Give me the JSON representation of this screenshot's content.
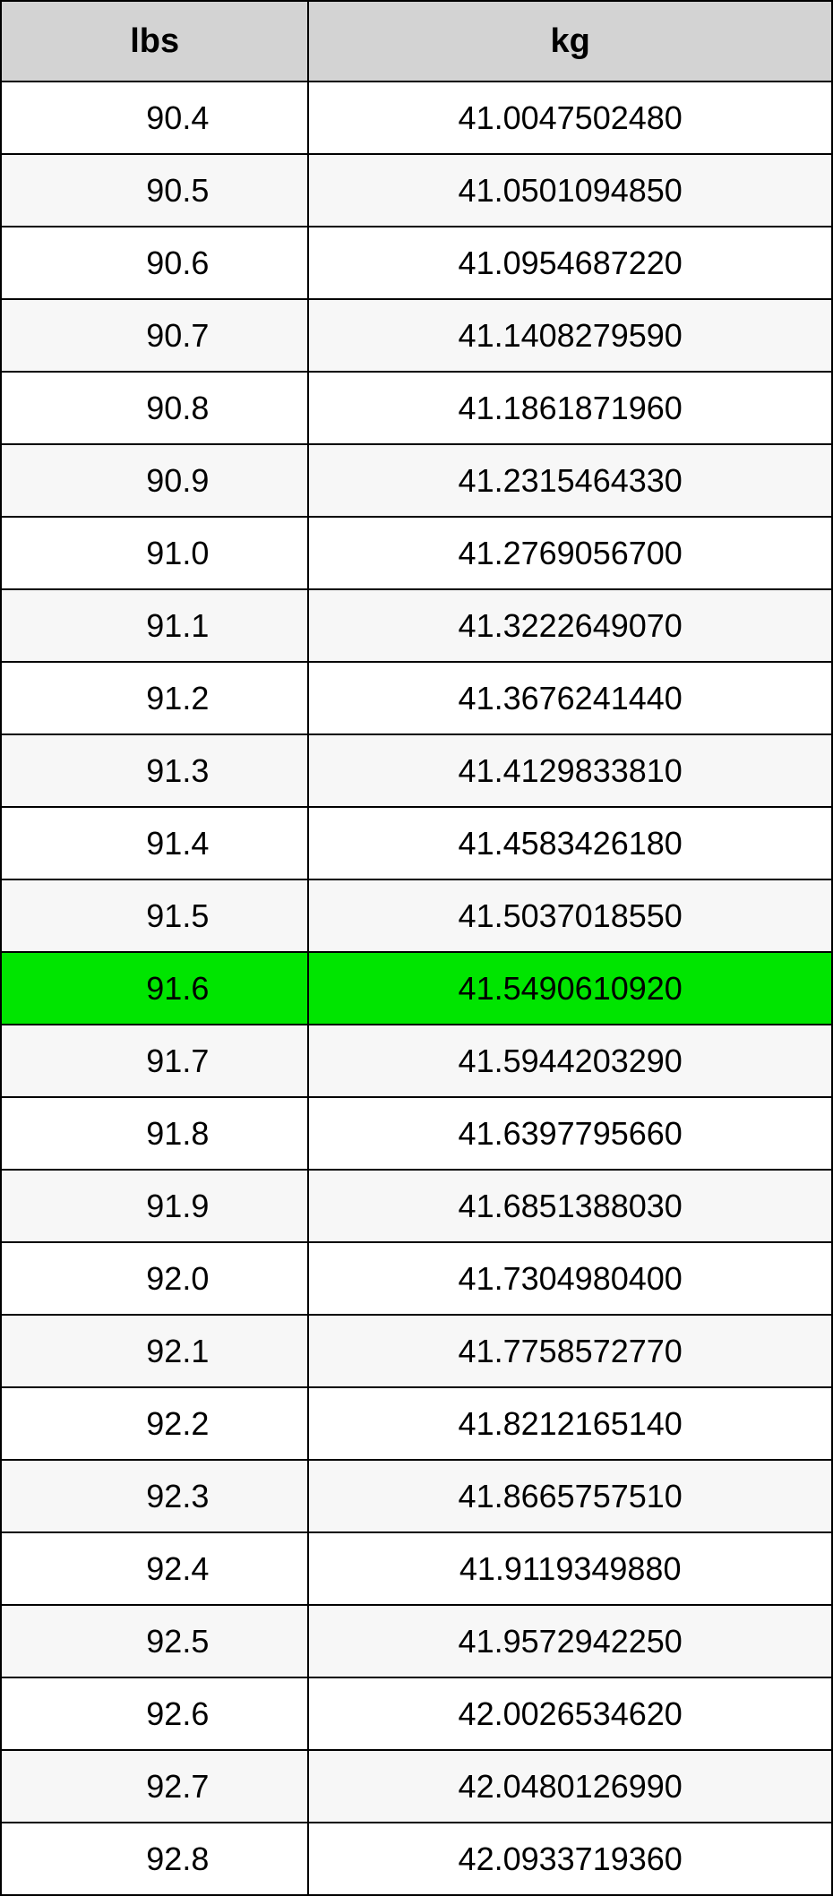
{
  "table": {
    "type": "table",
    "columns": [
      "lbs",
      "kg"
    ],
    "header_bg": "#d3d3d3",
    "header_fontsize": 38,
    "cell_fontsize": 36,
    "border_color": "#000000",
    "alt_row_bg": "#f7f7f7",
    "highlight_bg": "#00e500",
    "highlight_index": 12,
    "column_widths": [
      "37%",
      "63%"
    ],
    "rows": [
      {
        "lbs": "90.4",
        "kg": "41.0047502480"
      },
      {
        "lbs": "90.5",
        "kg": "41.0501094850"
      },
      {
        "lbs": "90.6",
        "kg": "41.0954687220"
      },
      {
        "lbs": "90.7",
        "kg": "41.1408279590"
      },
      {
        "lbs": "90.8",
        "kg": "41.1861871960"
      },
      {
        "lbs": "90.9",
        "kg": "41.2315464330"
      },
      {
        "lbs": "91.0",
        "kg": "41.2769056700"
      },
      {
        "lbs": "91.1",
        "kg": "41.3222649070"
      },
      {
        "lbs": "91.2",
        "kg": "41.3676241440"
      },
      {
        "lbs": "91.3",
        "kg": "41.4129833810"
      },
      {
        "lbs": "91.4",
        "kg": "41.4583426180"
      },
      {
        "lbs": "91.5",
        "kg": "41.5037018550"
      },
      {
        "lbs": "91.6",
        "kg": "41.5490610920"
      },
      {
        "lbs": "91.7",
        "kg": "41.5944203290"
      },
      {
        "lbs": "91.8",
        "kg": "41.6397795660"
      },
      {
        "lbs": "91.9",
        "kg": "41.6851388030"
      },
      {
        "lbs": "92.0",
        "kg": "41.7304980400"
      },
      {
        "lbs": "92.1",
        "kg": "41.7758572770"
      },
      {
        "lbs": "92.2",
        "kg": "41.8212165140"
      },
      {
        "lbs": "92.3",
        "kg": "41.8665757510"
      },
      {
        "lbs": "92.4",
        "kg": "41.9119349880"
      },
      {
        "lbs": "92.5",
        "kg": "41.9572942250"
      },
      {
        "lbs": "92.6",
        "kg": "42.0026534620"
      },
      {
        "lbs": "92.7",
        "kg": "42.0480126990"
      },
      {
        "lbs": "92.8",
        "kg": "42.0933719360"
      }
    ]
  }
}
